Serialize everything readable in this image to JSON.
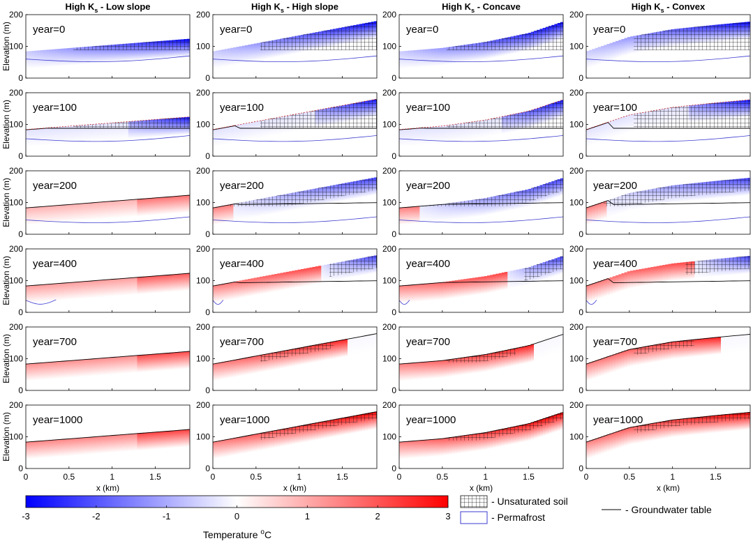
{
  "chart_data": {
    "type": "heatmap",
    "column_titles": [
      {
        "prefix": "High K",
        "sub": "s",
        "suffix": " - Low slope"
      },
      {
        "prefix": "High K",
        "sub": "s",
        "suffix": " - High slope"
      },
      {
        "prefix": "High K",
        "sub": "s",
        "suffix": " - Concave"
      },
      {
        "prefix": "High K",
        "sub": "s",
        "suffix": " - Convex"
      }
    ],
    "row_labels": [
      "year=0",
      "year=100",
      "year=200",
      "year=400",
      "year=700",
      "year=1000"
    ],
    "years": [
      0,
      100,
      200,
      400,
      700,
      1000
    ],
    "ylabel": "Elevation (m)",
    "xlabel": "x (km)",
    "ylim": [
      0,
      200
    ],
    "yticks": [
      0,
      100,
      200
    ],
    "xlim": [
      0,
      1.9
    ],
    "xticks": [
      0,
      0.5,
      1,
      1.5
    ],
    "xtick_labels": [
      "0",
      "0.5",
      "1",
      "1.5"
    ],
    "surface_profiles": {
      "low_slope": [
        {
          "x": 0,
          "z": 84
        },
        {
          "x": 1.9,
          "z": 124
        }
      ],
      "high_slope": [
        {
          "x": 0,
          "z": 84
        },
        {
          "x": 1.9,
          "z": 180
        }
      ],
      "concave": [
        {
          "x": 0,
          "z": 84
        },
        {
          "x": 0.5,
          "z": 95
        },
        {
          "x": 1.0,
          "z": 114
        },
        {
          "x": 1.5,
          "z": 142
        },
        {
          "x": 1.9,
          "z": 178
        }
      ],
      "convex": [
        {
          "x": 0,
          "z": 84
        },
        {
          "x": 0.5,
          "z": 130
        },
        {
          "x": 1.0,
          "z": 154
        },
        {
          "x": 1.5,
          "z": 168
        },
        {
          "x": 1.9,
          "z": 178
        }
      ]
    },
    "colorbar": {
      "label_text": "Temperature ",
      "label_sup": "o",
      "label_unit": "C",
      "min": -3,
      "max": 3,
      "ticks": [
        -3,
        -2,
        -1,
        0,
        1,
        2,
        3
      ],
      "tick_labels": [
        "-3",
        "-2",
        "-1",
        "0",
        "1",
        "2",
        "3"
      ],
      "cold_color": "#0000ff",
      "mid_color": "#ffffff",
      "warm_color": "#ff0000"
    },
    "legend": {
      "unsaturated": "- Unsaturated soil",
      "permafrost": "- Permafrost",
      "groundwater": "- Groundwater table",
      "permafrost_color": "#3b3bd0"
    }
  }
}
